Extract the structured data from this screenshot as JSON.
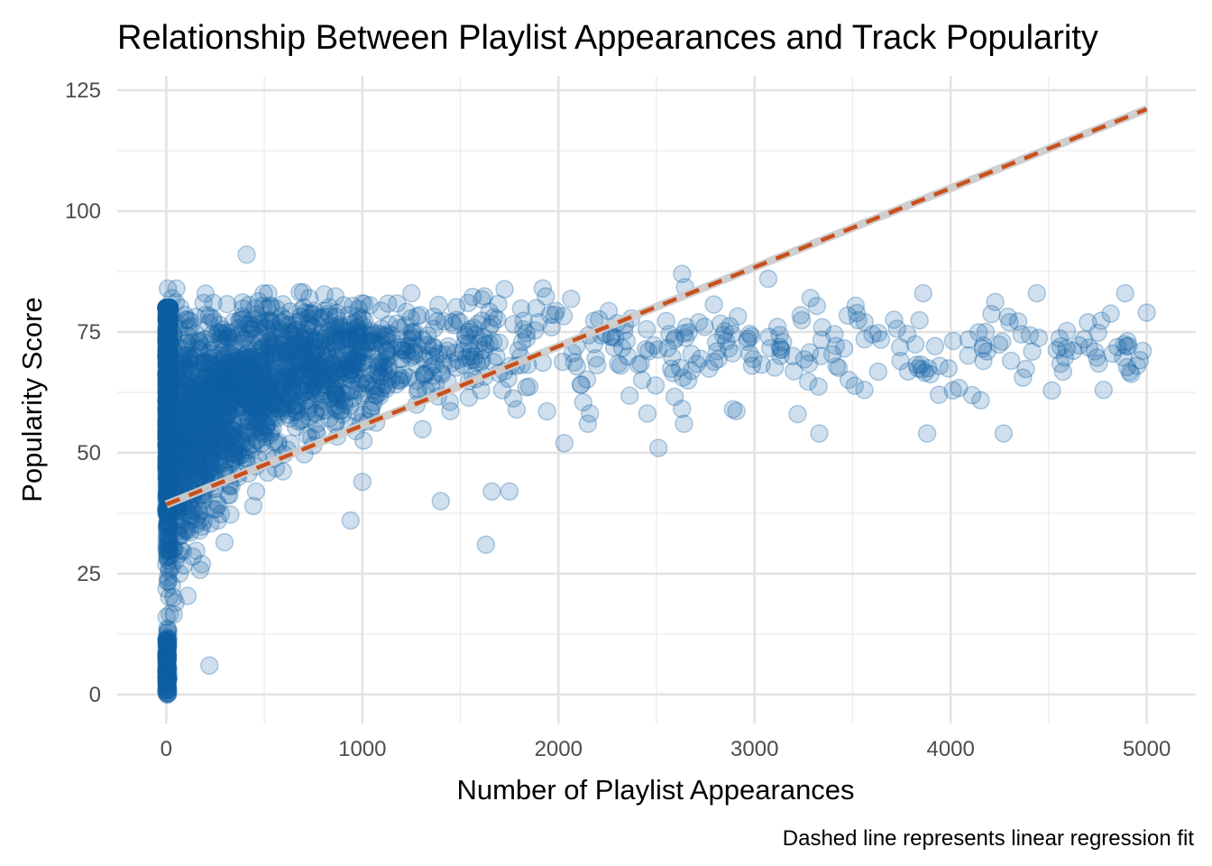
{
  "chart_data": {
    "type": "scatter",
    "title": "Relationship Between Playlist Appearances and Track Popularity",
    "xlabel": "Number of Playlist Appearances",
    "ylabel": "Popularity Score",
    "caption": "Dashed line represents linear regression fit",
    "xlim": [
      -250,
      5250
    ],
    "ylim": [
      -6,
      128
    ],
    "x_ticks": [
      0,
      1000,
      2000,
      3000,
      4000,
      5000
    ],
    "x_tick_labels": [
      "0",
      "1000",
      "2000",
      "3000",
      "4000",
      "5000"
    ],
    "y_ticks": [
      0,
      25,
      50,
      75,
      100,
      125
    ],
    "y_tick_labels": [
      "0",
      "25",
      "50",
      "75",
      "100",
      "125"
    ],
    "grid": true,
    "point_color": "#0e5fa3",
    "point_opacity": 0.2,
    "regression": {
      "intercept": 39.3,
      "slope": 0.01636,
      "x_range": [
        0,
        5000
      ],
      "color": "#c9501c",
      "band_color": "#cccccc",
      "style": "dashed"
    },
    "highlighted_points": [
      {
        "x": 410,
        "y": 91
      },
      {
        "x": 220,
        "y": 6
      },
      {
        "x": 2630,
        "y": 87
      },
      {
        "x": 3070,
        "y": 86
      },
      {
        "x": 1630,
        "y": 31
      },
      {
        "x": 940,
        "y": 36
      },
      {
        "x": 1400,
        "y": 40
      },
      {
        "x": 1660,
        "y": 42
      },
      {
        "x": 1750,
        "y": 42
      },
      {
        "x": 1000,
        "y": 44
      },
      {
        "x": 3330,
        "y": 54
      },
      {
        "x": 3880,
        "y": 54
      },
      {
        "x": 4270,
        "y": 54
      },
      {
        "x": 2510,
        "y": 51
      },
      {
        "x": 1920,
        "y": 84
      },
      {
        "x": 4890,
        "y": 83
      },
      {
        "x": 4440,
        "y": 83
      },
      {
        "x": 3860,
        "y": 83
      },
      {
        "x": 4780,
        "y": 63
      },
      {
        "x": 5000,
        "y": 79
      },
      {
        "x": 4700,
        "y": 77
      },
      {
        "x": 4300,
        "y": 77
      },
      {
        "x": 3940,
        "y": 62
      },
      {
        "x": 3560,
        "y": 63
      },
      {
        "x": 2030,
        "y": 52
      },
      {
        "x": 2150,
        "y": 56
      },
      {
        "x": 2640,
        "y": 56
      },
      {
        "x": 2890,
        "y": 59
      },
      {
        "x": 3220,
        "y": 58
      },
      {
        "x": 30,
        "y": 82
      },
      {
        "x": 190,
        "y": 81
      },
      {
        "x": 240,
        "y": 81
      },
      {
        "x": 520,
        "y": 83
      },
      {
        "x": 730,
        "y": 82
      },
      {
        "x": 1250,
        "y": 83
      },
      {
        "x": 1540,
        "y": 81
      }
    ]
  }
}
